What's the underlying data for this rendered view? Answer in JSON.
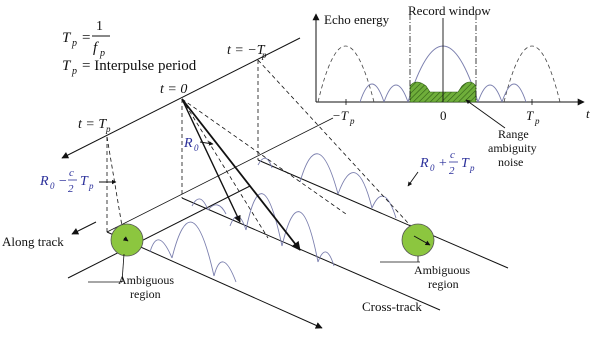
{
  "formulas": {
    "tp_symbol": "T",
    "tp_sub": "p",
    "eq": "=",
    "one": "1",
    "f": "f",
    "f_sub": "p",
    "interpulse": "= Interpulse period"
  },
  "time_labels": {
    "t0": "t = 0",
    "t_minus": "t = −T",
    "t_minus_sub": "p",
    "t_plus": "t = T",
    "t_plus_sub": "p"
  },
  "range_labels": {
    "r0": "R",
    "r0_sub": "0",
    "minus": "−",
    "plus": "+",
    "c": "c",
    "two": "2",
    "tp": "T",
    "tp_sub": "p"
  },
  "labels": {
    "along_track": "Along track",
    "cross_track": "Cross-track",
    "ambiguous_region_line1": "Ambiguous",
    "ambiguous_region_line2": "region",
    "range_ambiguity_1": "Range",
    "range_ambiguity_2": "ambiguity",
    "range_ambiguity_3": "noise"
  },
  "inset": {
    "y_label": "Echo energy",
    "record_window": "Record window",
    "t_axis": "t",
    "tick_minus": "−T",
    "tick_minus_sub": "p",
    "tick_zero": "0",
    "tick_plus": "T",
    "tick_plus_sub": "p"
  },
  "colors": {
    "ambiguous_fill": "#8cc63f",
    "noise_fill": "#5b9a2e",
    "echo_curve": "#7b7fae",
    "range_text": "#2a2f9a"
  }
}
